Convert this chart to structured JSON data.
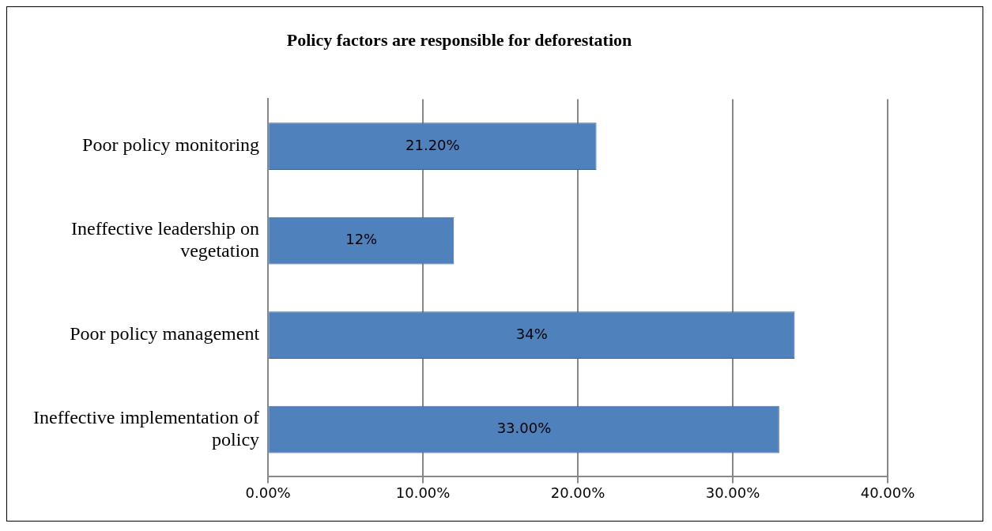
{
  "chart_data": {
    "type": "bar",
    "orientation": "horizontal",
    "title": "Policy factors are responsible for deforestation",
    "categories": [
      "Poor policy monitoring",
      "Ineffective leadership on vegetation",
      "Poor policy management",
      "Ineffective implementation of policy"
    ],
    "values": [
      21.2,
      12,
      34,
      33
    ],
    "value_labels": [
      "21.20%",
      "12%",
      "34%",
      "33.00%"
    ],
    "color": "#4f81bd",
    "xlim": [
      0,
      40
    ],
    "xticks": [
      {
        "value": 0,
        "label": "0.00%"
      },
      {
        "value": 10,
        "label": "10.00%"
      },
      {
        "value": 20,
        "label": "20.00%"
      },
      {
        "value": 30,
        "label": "30.00%"
      },
      {
        "value": 40,
        "label": "40.00%"
      }
    ],
    "grid": "x",
    "legend": false
  }
}
